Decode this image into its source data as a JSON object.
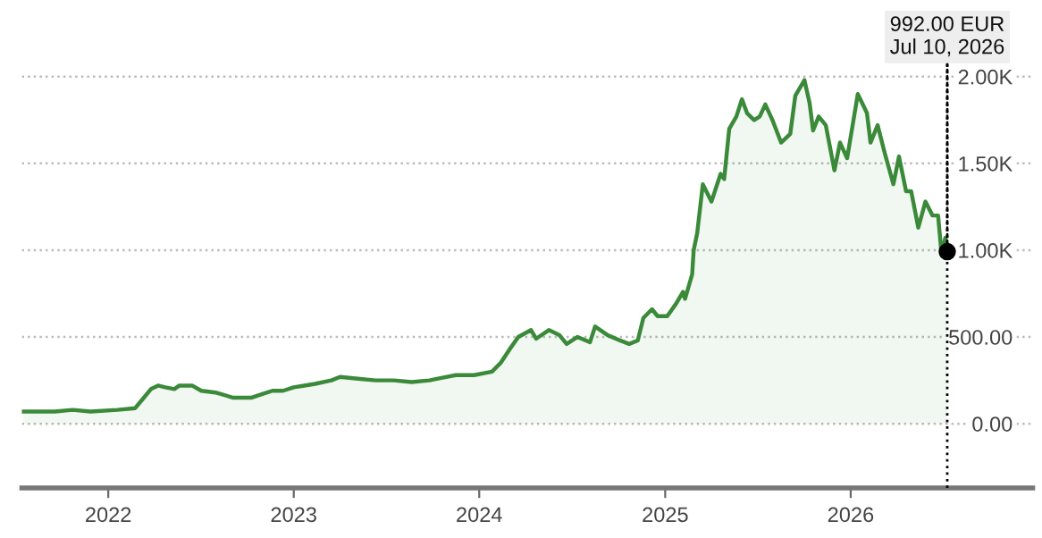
{
  "chart_data": {
    "type": "area",
    "x": [
      "2021-07-17",
      "2021-09-18",
      "2021-10-23",
      "2021-11-27",
      "2022-01-19",
      "2022-02-23",
      "2022-03-12",
      "2022-03-26",
      "2022-04-09",
      "2022-04-23",
      "2022-05-11",
      "2022-05-21",
      "2022-06-15",
      "2022-07-03",
      "2022-07-31",
      "2022-09-04",
      "2022-10-09",
      "2022-10-30",
      "2022-11-20",
      "2022-12-11",
      "2023-01-01",
      "2023-01-22",
      "2023-02-12",
      "2023-03-16",
      "2023-04-02",
      "2023-05-07",
      "2023-06-11",
      "2023-07-17",
      "2023-08-21",
      "2023-09-25",
      "2023-10-12",
      "2023-11-16",
      "2023-12-22",
      "2024-01-26",
      "2024-02-12",
      "2024-03-01",
      "2024-03-18",
      "2024-04-12",
      "2024-04-22",
      "2024-05-17",
      "2024-06-07",
      "2024-06-21",
      "2024-07-12",
      "2024-08-06",
      "2024-08-16",
      "2024-09-10",
      "2024-10-04",
      "2024-10-22",
      "2024-11-08",
      "2024-11-19",
      "2024-12-06",
      "2024-12-17",
      "2025-01-05",
      "2025-01-22",
      "2025-02-05",
      "2025-02-09",
      "2025-02-23",
      "2025-02-26",
      "2025-03-05",
      "2025-03-16",
      "2025-04-02",
      "2025-04-20",
      "2025-04-27",
      "2025-05-07",
      "2025-05-21",
      "2025-06-01",
      "2025-06-11",
      "2025-06-25",
      "2025-07-06",
      "2025-07-17",
      "2025-07-31",
      "2025-08-17",
      "2025-09-04",
      "2025-09-14",
      "2025-10-02",
      "2025-10-12",
      "2025-10-19",
      "2025-10-30",
      "2025-11-13",
      "2025-11-30",
      "2025-12-11",
      "2025-12-25",
      "2026-01-15",
      "2026-02-02",
      "2026-02-09",
      "2026-02-23",
      "2026-03-09",
      "2026-03-26",
      "2026-04-06",
      "2026-04-20",
      "2026-04-30",
      "2026-05-14",
      "2026-05-28",
      "2026-06-11",
      "2026-06-22",
      "2026-06-29",
      "2026-07-06",
      "2026-07-10"
    ],
    "series": [
      {
        "color": "#3a8a3a",
        "values": [
          70,
          70,
          80,
          70,
          80,
          90,
          150,
          200,
          220,
          210,
          200,
          220,
          220,
          190,
          180,
          150,
          150,
          170,
          190,
          190,
          210,
          220,
          230,
          250,
          270,
          260,
          250,
          250,
          240,
          250,
          260,
          280,
          280,
          300,
          350,
          430,
          500,
          540,
          490,
          540,
          510,
          460,
          500,
          470,
          560,
          510,
          480,
          460,
          480,
          610,
          660,
          620,
          620,
          690,
          760,
          720,
          860,
          1000,
          1100,
          1380,
          1280,
          1440,
          1410,
          1700,
          1770,
          1870,
          1790,
          1750,
          1770,
          1840,
          1750,
          1620,
          1670,
          1890,
          1980,
          1850,
          1690,
          1770,
          1720,
          1460,
          1620,
          1530,
          1900,
          1790,
          1620,
          1720,
          1560,
          1380,
          1540,
          1340,
          1340,
          1130,
          1280,
          1200,
          1200,
          970,
          1070,
          992
        ]
      }
    ],
    "xlim": [
      "2021-07-15",
      "2026-12-25"
    ],
    "xticks": [
      "2022",
      "2023",
      "2024",
      "2025",
      "2026"
    ],
    "ylim": [
      -370,
      2082
    ],
    "yticks": [
      {
        "value": 0,
        "label": "0.00"
      },
      {
        "value": 500,
        "label": "500.00"
      },
      {
        "value": 1000,
        "label": "1.00K"
      },
      {
        "value": 1500,
        "label": "1.50K"
      },
      {
        "value": 2000,
        "label": "2.00K"
      }
    ],
    "grid": "y",
    "ref_lines": [
      {
        "axis": "x",
        "value": "2026-07-10",
        "color": "#000000",
        "line_style": "dotted"
      }
    ],
    "annotations": [
      {
        "text": "992.00 EUR\nJul 10, 2026",
        "x": "2026-07-10",
        "y": 992
      }
    ]
  }
}
